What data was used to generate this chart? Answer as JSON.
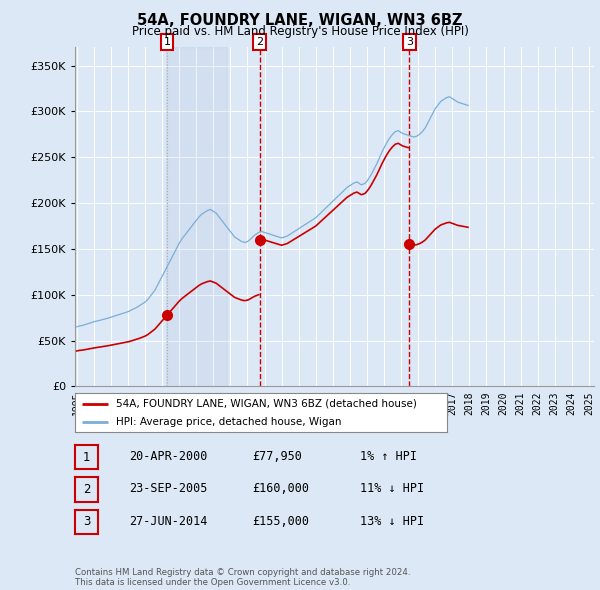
{
  "title": "54A, FOUNDRY LANE, WIGAN, WN3 6BZ",
  "subtitle": "Price paid vs. HM Land Registry's House Price Index (HPI)",
  "legend_label_red": "54A, FOUNDRY LANE, WIGAN, WN3 6BZ (detached house)",
  "legend_label_blue": "HPI: Average price, detached house, Wigan",
  "footer": "Contains HM Land Registry data © Crown copyright and database right 2024.\nThis data is licensed under the Open Government Licence v3.0.",
  "transactions": [
    {
      "num": 1,
      "date": "20-APR-2000",
      "price": 77950,
      "pct": "1%",
      "dir": "↑",
      "x_year": 2000.3
    },
    {
      "num": 2,
      "date": "23-SEP-2005",
      "price": 160000,
      "pct": "11%",
      "dir": "↓",
      "x_year": 2005.72
    },
    {
      "num": 3,
      "date": "27-JUN-2014",
      "price": 155000,
      "pct": "13%",
      "dir": "↓",
      "x_year": 2014.48
    }
  ],
  "hpi_monthly": {
    "start_year": 1995.0,
    "month_step": 0.08333,
    "values": [
      65000,
      65500,
      66000,
      66200,
      66500,
      67000,
      67500,
      68000,
      68500,
      69000,
      69500,
      70000,
      70500,
      71000,
      71300,
      71600,
      72000,
      72400,
      72800,
      73200,
      73600,
      74000,
      74500,
      75000,
      75500,
      76000,
      76500,
      77000,
      77500,
      78000,
      78500,
      79000,
      79500,
      80000,
      80500,
      81000,
      81500,
      82200,
      83000,
      83800,
      84500,
      85200,
      86000,
      87000,
      88000,
      89000,
      90000,
      91000,
      92000,
      93500,
      95000,
      97000,
      99000,
      101000,
      103000,
      105000,
      108000,
      111000,
      114000,
      117000,
      120000,
      123000,
      126000,
      129000,
      132000,
      135000,
      138000,
      141000,
      144000,
      147000,
      150000,
      153000,
      156000,
      158500,
      161000,
      163000,
      165000,
      167000,
      169000,
      171000,
      173000,
      175000,
      177000,
      179000,
      181000,
      183000,
      185000,
      186500,
      188000,
      189000,
      190000,
      191000,
      192000,
      192500,
      193000,
      192000,
      191000,
      190000,
      189000,
      187000,
      185000,
      183000,
      181000,
      179000,
      177000,
      175000,
      173000,
      171000,
      169000,
      167000,
      165000,
      163000,
      162000,
      161000,
      160000,
      159000,
      158000,
      157500,
      157000,
      157500,
      158000,
      159000,
      160500,
      162000,
      163500,
      165000,
      166000,
      167000,
      168000,
      168500,
      169000,
      168500,
      168000,
      167500,
      167000,
      166500,
      166000,
      165500,
      165000,
      164500,
      164000,
      163500,
      163000,
      162500,
      162000,
      162500,
      163000,
      163500,
      164000,
      165000,
      166000,
      167000,
      168000,
      169000,
      170000,
      171000,
      172000,
      173000,
      174000,
      175000,
      176000,
      177000,
      178000,
      179000,
      180000,
      181000,
      182000,
      183000,
      184000,
      185500,
      187000,
      188500,
      190000,
      191500,
      193000,
      194500,
      196000,
      197500,
      199000,
      200500,
      202000,
      203500,
      205000,
      206500,
      208000,
      209500,
      211000,
      212500,
      214000,
      215500,
      217000,
      218000,
      219000,
      220000,
      221000,
      222000,
      222500,
      223000,
      222000,
      221000,
      220000,
      220500,
      221000,
      222000,
      224000,
      226000,
      228500,
      231000,
      234000,
      237000,
      240000,
      243000,
      246500,
      250000,
      253500,
      257000,
      260000,
      263000,
      266000,
      268500,
      271000,
      273000,
      275000,
      276500,
      278000,
      278500,
      279000,
      278000,
      277000,
      276000,
      275500,
      275000,
      274500,
      274000,
      273500,
      273000,
      272500,
      272000,
      272500,
      273000,
      274000,
      275000,
      276500,
      278000,
      280000,
      282000,
      285000,
      288000,
      291000,
      294000,
      297000,
      300000,
      303000,
      305000,
      307000,
      309000,
      311000,
      312000,
      313000,
      314000,
      315000,
      315500,
      316000,
      315000,
      314000,
      313000,
      312000,
      311000,
      310000,
      309500,
      309000,
      308500,
      308000,
      307500,
      307000,
      306500
    ]
  },
  "ylim": [
    0,
    370000
  ],
  "xlim": [
    1994.9,
    2025.3
  ],
  "yticks": [
    0,
    50000,
    100000,
    150000,
    200000,
    250000,
    300000,
    350000
  ],
  "xticks": [
    1995,
    1996,
    1997,
    1998,
    1999,
    2000,
    2001,
    2002,
    2003,
    2004,
    2005,
    2006,
    2007,
    2008,
    2009,
    2010,
    2011,
    2012,
    2013,
    2014,
    2015,
    2016,
    2017,
    2018,
    2019,
    2020,
    2021,
    2022,
    2023,
    2024,
    2025
  ],
  "bg_color": "#dce8f5",
  "plot_bg": "#dce8f5",
  "grid_bg": "#ffffff",
  "red_color": "#cc0000",
  "blue_color": "#7aaed6",
  "vline_color_dotted": "#aaaaaa",
  "vline_color_dashed": "#cc0000",
  "grid_color": "#c8d8e8",
  "box_edge_color": "#cc0000"
}
